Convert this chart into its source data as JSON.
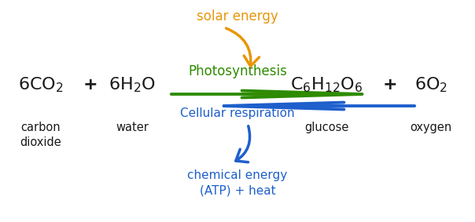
{
  "bg_color": "#ffffff",
  "orange_color": "#E8960A",
  "green_color": "#2E8B00",
  "blue_color": "#1E5FCC",
  "black_color": "#1a1a1a",
  "solar_energy_text": "solar energy",
  "photosynthesis_text": "Photosynthesis",
  "cellular_text": "Cellular respiration",
  "chemical_text": "chemical energy\n(ATP) + heat",
  "co2_label": "carbon\ndioxide",
  "h2o_label": "water",
  "glucose_label": "glucose",
  "oxygen_label": "oxygen",
  "figw": 6.04,
  "figh": 2.83
}
